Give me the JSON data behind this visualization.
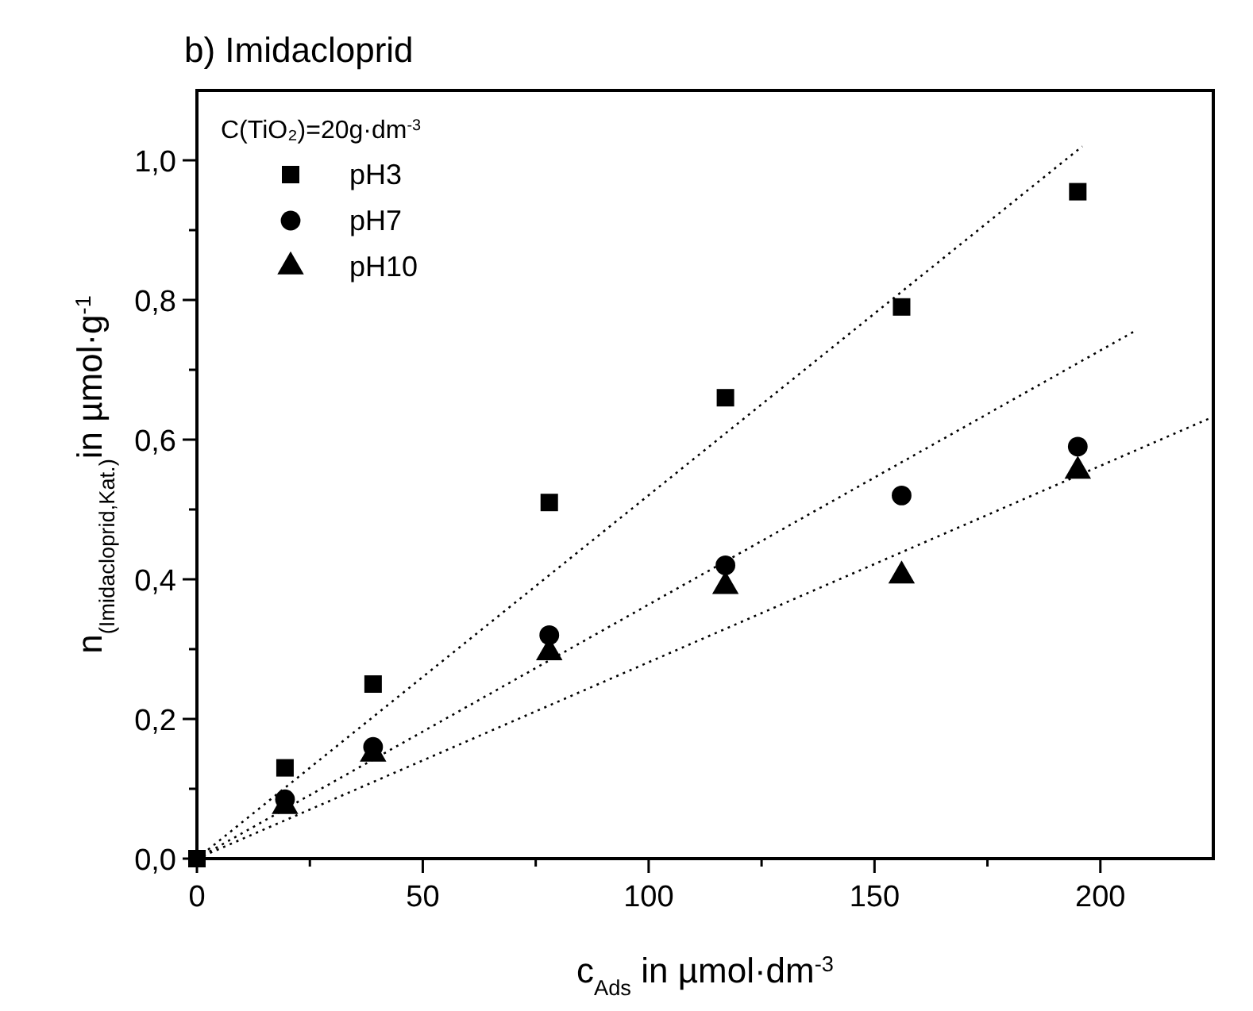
{
  "chart_data": {
    "type": "scatter",
    "title": "b) Imidacloprid",
    "xlabel": "c$_{Ads}$ in µmol·dm$^{-3}$",
    "ylabel": "n$_{(Imidacloprid,Kat.)}$in µmol·g$^{-1}$",
    "legend_title": "C(TiO₂)=20g·dm$^{-3}$",
    "legend": "top left",
    "x": [
      0,
      19.5,
      39,
      78,
      117,
      156,
      195
    ],
    "series": [
      {
        "name": "pH3",
        "color": "#000000",
        "marker": "square",
        "values": [
          0,
          0.13,
          0.25,
          0.51,
          0.66,
          0.79,
          0.955
        ]
      },
      {
        "name": "pH7",
        "color": "#000000",
        "marker": "circle",
        "values": [
          null,
          0.085,
          0.16,
          0.32,
          0.42,
          0.52,
          0.59
        ]
      },
      {
        "name": "pH10",
        "color": "#000000",
        "marker": "triangle",
        "values": [
          null,
          0.075,
          0.15,
          0.295,
          0.39,
          0.405,
          0.555
        ]
      },
      {
        "type": "line",
        "color": "#000000",
        "marker": "none",
        "line_style": "dotted",
        "x": [
          0,
          196
        ],
        "values": [
          0,
          1.02
        ]
      },
      {
        "type": "line",
        "color": "#000000",
        "marker": "none",
        "line_style": "dotted",
        "x": [
          0,
          207.5
        ],
        "values": [
          0,
          0.755
        ]
      },
      {
        "type": "line",
        "color": "#000000",
        "marker": "none",
        "line_style": "dotted",
        "x": [
          0,
          224
        ],
        "values": [
          0,
          0.63
        ]
      }
    ],
    "xlim": [
      0,
      225
    ],
    "ylim": [
      0,
      1.1
    ],
    "xticks": [
      0,
      {
        "value": 25,
        "label": null
      },
      50,
      {
        "value": 75,
        "label": null
      },
      100,
      {
        "value": 125,
        "label": null
      },
      150,
      {
        "value": 175,
        "label": null
      },
      200
    ],
    "yticks": [
      {
        "value": 0,
        "label": "0,0"
      },
      {
        "value": 0.1,
        "label": null
      },
      {
        "value": 0.2,
        "label": "0,2"
      },
      {
        "value": 0.3,
        "label": null
      },
      {
        "value": 0.4,
        "label": "0,4"
      },
      {
        "value": 0.5,
        "label": null
      },
      {
        "value": 0.6,
        "label": "0,6"
      },
      {
        "value": 0.7,
        "label": null
      },
      {
        "value": 0.8,
        "label": "0,8"
      },
      {
        "value": 0.9,
        "label": null
      },
      {
        "value": 1.0,
        "label": "1,0"
      }
    ],
    "grid": false
  }
}
